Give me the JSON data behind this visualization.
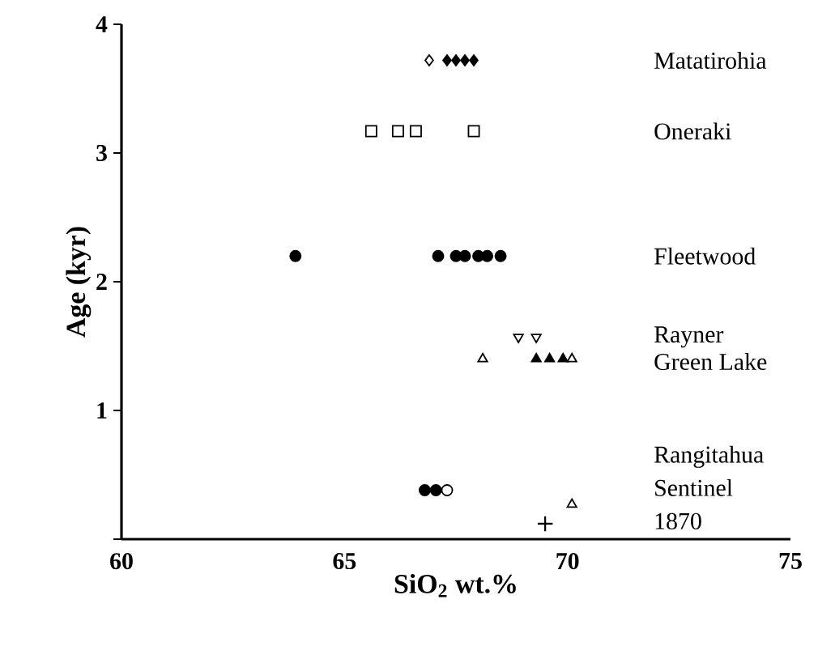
{
  "chart_data": {
    "type": "scatter",
    "xlabel": "SiO$_{2}$ wt.%",
    "ylabel": "Age (kyr)",
    "xlim": [
      60,
      75
    ],
    "ylim": [
      0,
      4
    ],
    "xticks": [
      60,
      65,
      70,
      75
    ],
    "yticks": [
      {
        "value": 0,
        "label": null
      },
      1,
      2,
      3,
      4
    ],
    "grid": false,
    "series": [
      {
        "color": "#000000",
        "marker": "diamond",
        "x": [
          66.9
        ],
        "values": [
          3.72
        ]
      },
      {
        "color": "#000000",
        "marker": "diamond",
        "x": [
          67.3,
          67.5,
          67.7,
          67.9
        ],
        "values": [
          3.72,
          3.72,
          3.72,
          3.72
        ]
      },
      {
        "color": "#000000",
        "marker": "square",
        "x": [
          65.6,
          66.2,
          66.6,
          67.9
        ],
        "values": [
          3.17,
          3.17,
          3.17,
          3.17
        ]
      },
      {
        "color": "#000000",
        "marker": "circle",
        "x": [
          63.9,
          67.1,
          67.5,
          67.7,
          68.0,
          68.2,
          68.5
        ],
        "values": [
          2.2,
          2.2,
          2.2,
          2.2,
          2.2,
          2.2,
          2.2
        ]
      },
      {
        "color": "#000000",
        "marker": "triangle down",
        "x": [
          68.9,
          69.3
        ],
        "values": [
          1.57,
          1.57
        ]
      },
      {
        "color": "#000000",
        "marker": "triangle",
        "x": [
          68.1,
          70.1
        ],
        "values": [
          1.4,
          1.4
        ]
      },
      {
        "color": "#000000",
        "marker": "triangle",
        "x": [
          69.3,
          69.6,
          69.9
        ],
        "values": [
          1.4,
          1.4,
          1.4
        ]
      },
      {
        "color": "#000000",
        "marker": "circle",
        "x": [
          66.8,
          67.05
        ],
        "values": [
          0.38,
          0.38
        ]
      },
      {
        "color": "#000000",
        "marker": "circle",
        "x": [
          67.3
        ],
        "values": [
          0.38
        ]
      },
      {
        "color": "#000000",
        "marker": "triangle",
        "x": [
          70.1
        ],
        "values": [
          0.27
        ]
      },
      {
        "color": "#000000",
        "marker": "cross",
        "x": [
          69.5
        ],
        "values": [
          0.12
        ]
      }
    ],
    "annotations": [
      "Matatirohia",
      "Oneraki",
      "Fleetwood",
      "Rayner",
      "Green Lake",
      "Rangitahua",
      "Sentinel",
      "1870"
    ]
  }
}
